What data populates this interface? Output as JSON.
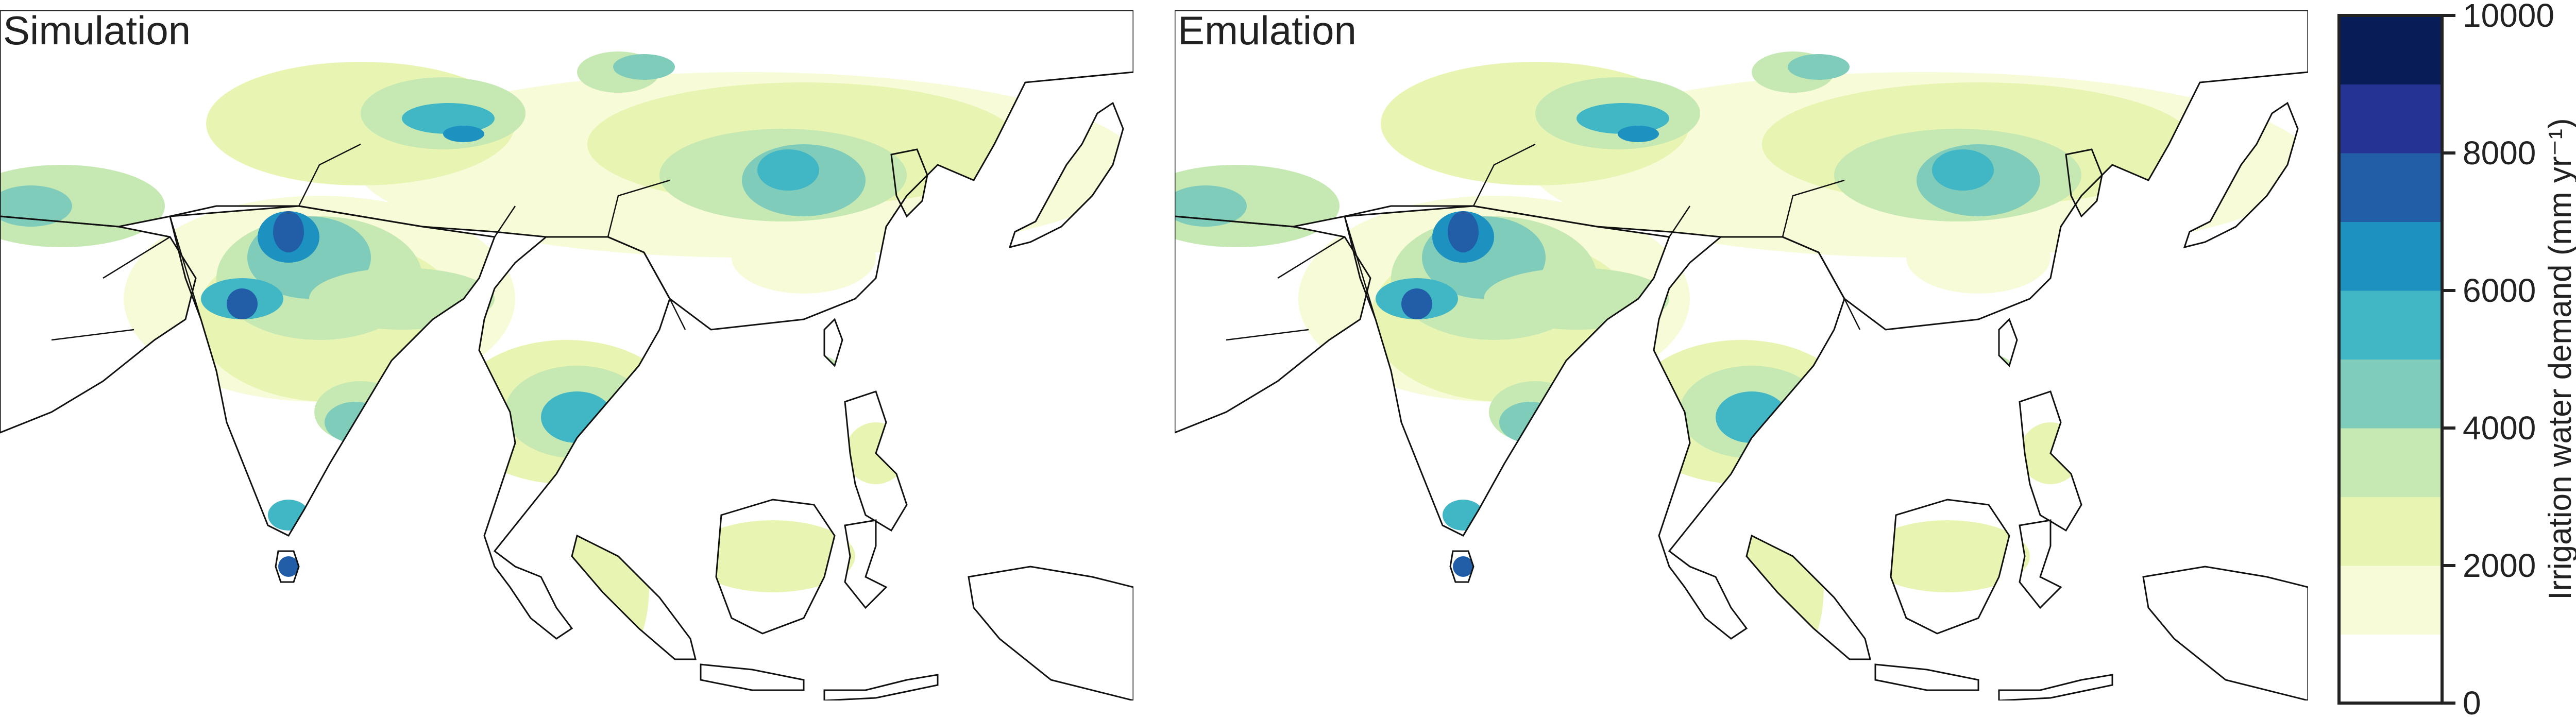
{
  "panels": [
    {
      "id": "sim",
      "title": "Simulation"
    },
    {
      "id": "emu",
      "title": "Emulation"
    }
  ],
  "colorbar": {
    "label": "Irrigation water demand (mm yr⁻¹)",
    "ticks": [
      "0",
      "2000",
      "4000",
      "6000",
      "8000",
      "10000"
    ],
    "range": [
      0,
      10000
    ],
    "step": 1000,
    "colors": [
      "#ffffff",
      "#f7fbd8",
      "#e8f5b2",
      "#c6e9b3",
      "#7fccbb",
      "#41b6c4",
      "#1d91c0",
      "#225ea8",
      "#253494",
      "#081d58"
    ]
  }
}
